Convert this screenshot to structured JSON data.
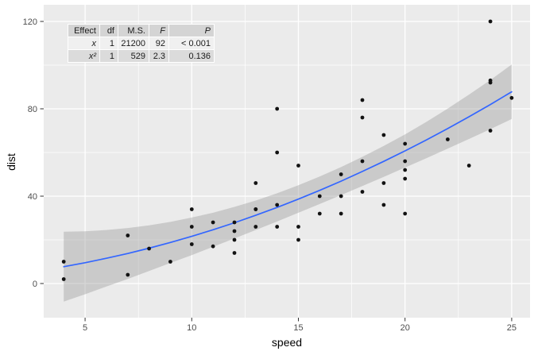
{
  "anova_table": {
    "header": [
      "Effect",
      "df",
      "M.S.",
      "F",
      "P"
    ],
    "rows": [
      {
        "effect": "x",
        "df": "1",
        "ms": "21200",
        "f": "92",
        "p": "< 0.001"
      },
      {
        "effect": "x²",
        "df": "1",
        "ms": "529",
        "f": "2.3",
        "p": "0.136"
      }
    ]
  },
  "chart_data": {
    "type": "scatter",
    "title": "",
    "xlabel": "speed",
    "ylabel": "dist",
    "legend": "none",
    "grid": "on",
    "xlim": [
      3.06,
      25.86
    ],
    "ylim": [
      -15.64,
      127.64
    ],
    "x_ticks": [
      5,
      10,
      15,
      20,
      25
    ],
    "y_ticks": [
      0,
      40,
      80,
      120
    ],
    "x_minor_ticks": [
      7.5,
      12.5,
      17.5,
      22.5
    ],
    "y_minor_ticks": [
      20,
      60,
      100
    ],
    "points": [
      [
        4,
        2
      ],
      [
        4,
        10
      ],
      [
        7,
        4
      ],
      [
        7,
        22
      ],
      [
        8,
        16
      ],
      [
        9,
        10
      ],
      [
        10,
        18
      ],
      [
        10,
        26
      ],
      [
        10,
        34
      ],
      [
        11,
        17
      ],
      [
        11,
        28
      ],
      [
        12,
        14
      ],
      [
        12,
        20
      ],
      [
        12,
        24
      ],
      [
        12,
        28
      ],
      [
        13,
        26
      ],
      [
        13,
        34
      ],
      [
        13,
        34
      ],
      [
        13,
        46
      ],
      [
        14,
        26
      ],
      [
        14,
        36
      ],
      [
        14,
        60
      ],
      [
        14,
        80
      ],
      [
        15,
        20
      ],
      [
        15,
        26
      ],
      [
        15,
        54
      ],
      [
        16,
        32
      ],
      [
        16,
        40
      ],
      [
        17,
        32
      ],
      [
        17,
        40
      ],
      [
        17,
        50
      ],
      [
        18,
        42
      ],
      [
        18,
        56
      ],
      [
        18,
        76
      ],
      [
        18,
        84
      ],
      [
        19,
        36
      ],
      [
        19,
        46
      ],
      [
        19,
        68
      ],
      [
        20,
        32
      ],
      [
        20,
        48
      ],
      [
        20,
        52
      ],
      [
        20,
        56
      ],
      [
        20,
        64
      ],
      [
        22,
        66
      ],
      [
        23,
        54
      ],
      [
        24,
        70
      ],
      [
        24,
        92
      ],
      [
        24,
        93
      ],
      [
        24,
        120
      ],
      [
        25,
        85
      ]
    ],
    "smooth": {
      "model": "dist ~ x + x2 (quadratic fit with 95% CI ribbon)",
      "x": [
        4,
        5,
        6,
        7,
        8,
        9,
        10,
        11,
        12,
        13,
        14,
        15,
        16,
        17,
        18,
        19,
        20,
        21,
        22,
        23,
        24,
        25
      ],
      "fit": [
        7.72,
        9.54,
        11.55,
        13.76,
        16.17,
        18.79,
        21.6,
        24.61,
        27.82,
        31.24,
        34.85,
        38.66,
        42.67,
        46.88,
        51.3,
        55.91,
        60.72,
        65.73,
        70.94,
        76.35,
        81.97,
        87.78
      ],
      "lower": [
        -8.3,
        -4.9,
        -1.4,
        2.1,
        5.7,
        9.4,
        13.0,
        16.8,
        20.6,
        24.5,
        28.4,
        32.4,
        36.4,
        40.5,
        44.6,
        48.8,
        53.1,
        57.4,
        61.8,
        66.2,
        70.7,
        75.3
      ],
      "upper": [
        23.7,
        23.9,
        24.5,
        25.4,
        26.6,
        28.2,
        30.2,
        32.4,
        35.1,
        38.0,
        41.3,
        45.0,
        49.0,
        53.3,
        58.0,
        63.0,
        68.3,
        74.0,
        80.1,
        86.5,
        93.2,
        100.3
      ]
    },
    "colors": {
      "panel_background": "#EBEBEB",
      "grid": "#FFFFFF",
      "point": "#121212",
      "smooth_line": "#3366FF",
      "ribbon": "#999999",
      "ribbon_opacity": 0.4,
      "tick_label": "#4D4D4D",
      "tick_mark": "#333333",
      "axis_title": "#000000"
    }
  }
}
